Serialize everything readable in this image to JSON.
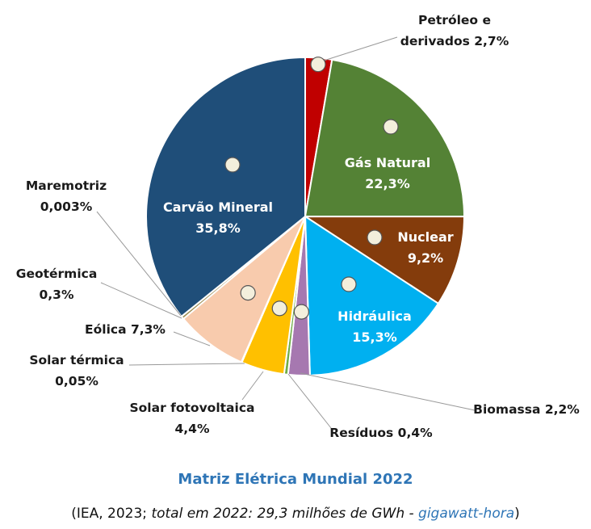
{
  "chart_data": {
    "type": "pie",
    "title": "Matriz Elétrica Mundial 2022",
    "subtitle": {
      "prefix": "(IEA, 2023; ",
      "italic": "total em 2022: 29,3 milhões de GWh - ",
      "link": "gigawatt-hora",
      "suffix": ")"
    },
    "start": "top",
    "direction": "clockwise",
    "slices": [
      {
        "name": "Petróleo e derivados",
        "value": 2.7,
        "label": [
          "Petróleo e",
          "derivados 2,7%"
        ],
        "color": "#c00000",
        "icon": "oil-barrel-icon"
      },
      {
        "name": "Gás Natural",
        "value": 22.3,
        "label": [
          "Gás Natural",
          "22,3%"
        ],
        "color": "#548235",
        "icon": "gas-flame-icon"
      },
      {
        "name": "Nuclear",
        "value": 9.2,
        "label": [
          "Nuclear",
          "9,2%"
        ],
        "color": "#843c0c",
        "icon": "atom-icon"
      },
      {
        "name": "Hidráulica",
        "value": 15.3,
        "label": [
          "Hidráulica",
          "15,3%"
        ],
        "color": "#00b0f0",
        "icon": "water-drop-icon"
      },
      {
        "name": "Biomassa",
        "value": 2.2,
        "label": [
          "Biomassa 2,2%"
        ],
        "color": "#a678b0",
        "icon": "leaf-icon"
      },
      {
        "name": "Resíduos",
        "value": 0.4,
        "label": [
          "Resíduos 0,4%"
        ],
        "color": "#70ad47"
      },
      {
        "name": "Solar fotovoltaica",
        "value": 4.4,
        "label": [
          "Solar fotovoltaica",
          "4,4%"
        ],
        "color": "#ffc000",
        "icon": "sun-icon"
      },
      {
        "name": "Solar térmica",
        "value": 0.05,
        "label": [
          "Solar térmica",
          "0,05%"
        ],
        "color": "#ff8c00"
      },
      {
        "name": "Eólica",
        "value": 7.3,
        "label": [
          "Eólica 7,3%"
        ],
        "color": "#f8cbad",
        "icon": "wind-icon"
      },
      {
        "name": "Geotérmica",
        "value": 0.3,
        "label": [
          "Geotérmica",
          "0,3%"
        ],
        "color": "#9c8b50"
      },
      {
        "name": "Maremotriz",
        "value": 0.003,
        "label": [
          "Maremotriz",
          "0,003%"
        ],
        "color": "#4472c4"
      },
      {
        "name": "Carvão Mineral",
        "value": 35.8,
        "label": [
          "Carvão Mineral",
          "35,8%"
        ],
        "color": "#1f4e79",
        "icon": "coal-icon"
      }
    ]
  }
}
